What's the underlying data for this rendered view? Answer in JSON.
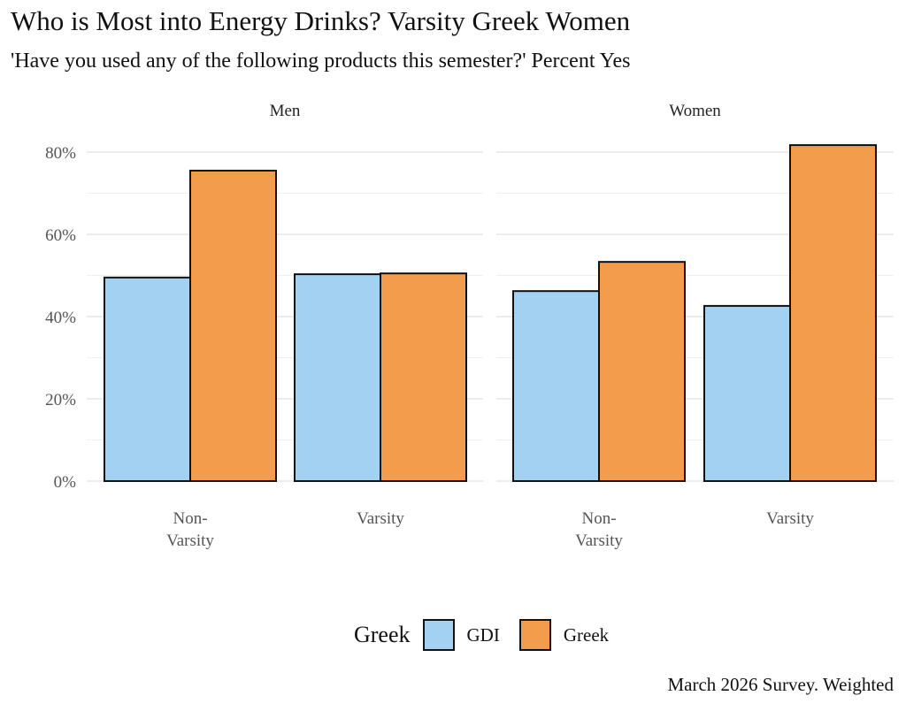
{
  "chart_data": {
    "type": "bar",
    "title": "Who is Most into Energy Drinks? Varsity Greek Women",
    "subtitle": "'Have you used any of the following products this semester?' Percent Yes",
    "caption": "March 2026 Survey. Weighted",
    "facets": [
      "Men",
      "Women"
    ],
    "categories": [
      [
        "Non-",
        "Varsity"
      ],
      [
        "Varsity"
      ]
    ],
    "category_names": [
      "Non-Varsity",
      "Varsity"
    ],
    "ylim": [
      0,
      80
    ],
    "yticks": [
      0,
      20,
      40,
      60,
      80
    ],
    "ytick_labels": [
      "0%",
      "20%",
      "40%",
      "60%",
      "80%"
    ],
    "grid": true,
    "legend": {
      "title": "Greek",
      "position": "bottom",
      "entries": [
        "GDI",
        "Greek"
      ]
    },
    "colors": {
      "GDI": "#a3d1f2",
      "Greek": "#f29c4c"
    },
    "series": [
      {
        "name": "GDI",
        "values": {
          "Men": [
            49.5,
            50.3
          ],
          "Women": [
            46.2,
            42.6
          ]
        }
      },
      {
        "name": "Greek",
        "values": {
          "Men": [
            75.5,
            50.5
          ],
          "Women": [
            53.3,
            81.7
          ]
        }
      }
    ]
  }
}
